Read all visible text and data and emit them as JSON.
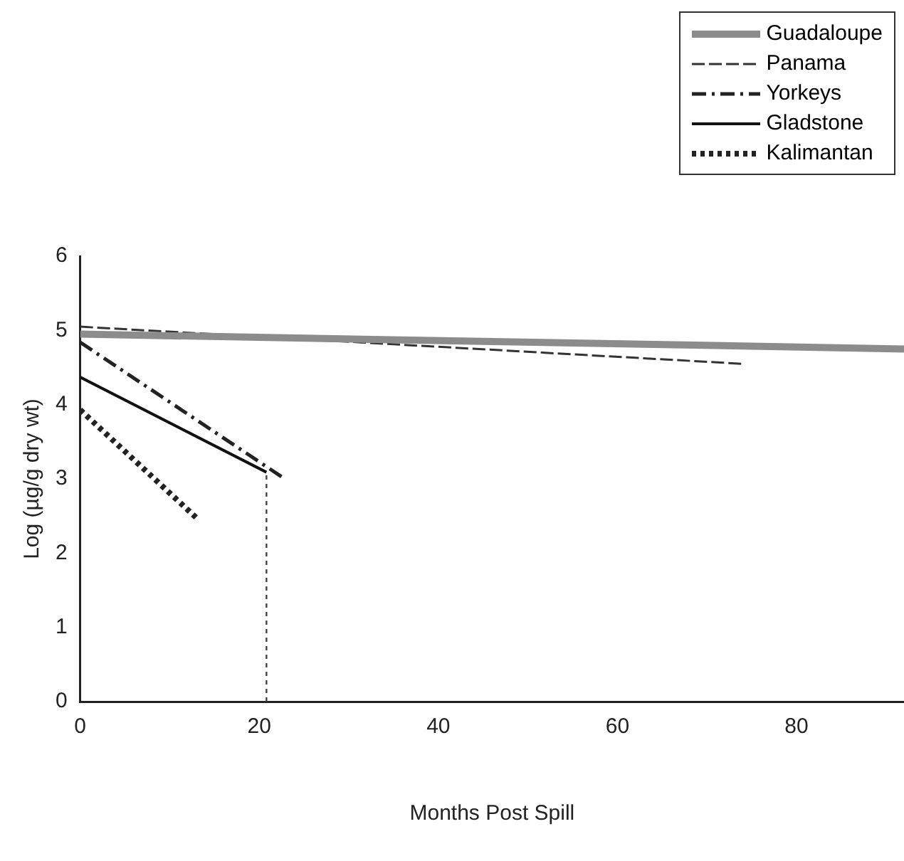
{
  "chart_data": {
    "type": "line",
    "xlabel": "Months Post Spill",
    "ylabel": "Log (µg/g dry wt)",
    "xlim": [
      0,
      92
    ],
    "xticks": [
      0,
      20,
      40,
      60,
      80
    ],
    "ylim": [
      0,
      6
    ],
    "yticks": [
      0,
      1,
      2,
      3,
      4,
      5,
      6
    ],
    "grid": false,
    "legend": "top right",
    "marker": "none",
    "series": [
      {
        "name": "Guadaloupe",
        "color": "#8c8c8c",
        "line_style": "solid",
        "x": [
          0,
          92
        ],
        "values": [
          4.95,
          4.75
        ]
      },
      {
        "name": "Panama",
        "color": "#333333",
        "line_style": "dashed",
        "x": [
          0,
          74
        ],
        "values": [
          5.05,
          4.55
        ]
      },
      {
        "name": "Yorkeys",
        "color": "#222222",
        "line_style": "dashdot",
        "x": [
          0,
          22.6
        ],
        "values": [
          4.84,
          3.02
        ]
      },
      {
        "name": "Gladstone",
        "color": "#111111",
        "line_style": "solid",
        "x": [
          0,
          20.8
        ],
        "values": [
          4.37,
          3.09
        ]
      },
      {
        "name": "Kalimantan",
        "color": "#222222",
        "line_style": "dotted",
        "x": [
          0,
          13.2
        ],
        "values": [
          3.93,
          2.45
        ]
      }
    ],
    "ref_lines": [
      {
        "axis": "x",
        "value": 20.8,
        "color": "#444444",
        "line_style": "dotted"
      }
    ]
  }
}
